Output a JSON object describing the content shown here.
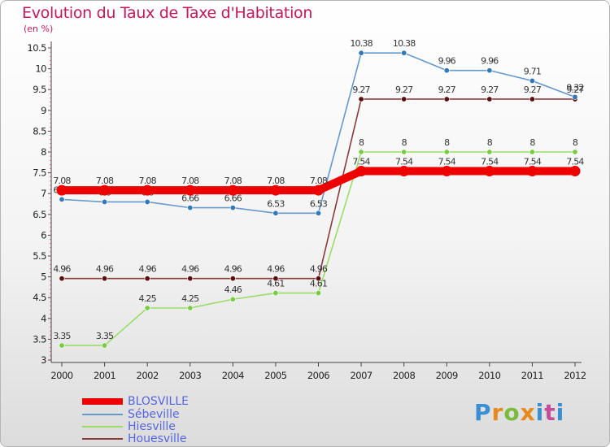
{
  "header": {
    "title": "Evolution du Taux de Taxe d'Habitation",
    "unit": "(en %)"
  },
  "logo": {
    "text": "Proxiti"
  },
  "chart_data": {
    "type": "line",
    "title": "Evolution du Taux de Taxe d'Habitation",
    "ylabel": "(en %)",
    "xlabel": "",
    "x": [
      "2000",
      "2001",
      "2002",
      "2003",
      "2004",
      "2005",
      "2006",
      "2007",
      "2008",
      "2009",
      "2010",
      "2011",
      "2012"
    ],
    "ylim": [
      3,
      10.5
    ],
    "yticks": [
      "3",
      "3.5",
      "4",
      "4.5",
      "5",
      "5.5",
      "6",
      "6.5",
      "7",
      "7.5",
      "8",
      "8.5",
      "9",
      "9.5",
      "10",
      "10.5"
    ],
    "grid": false,
    "legend_position": "bottom-left",
    "series": [
      {
        "name": "Hiesville",
        "color": "#99dd66",
        "marker_color": "#77cc44",
        "values": [
          3.35,
          3.35,
          4.25,
          4.25,
          4.46,
          4.61,
          4.61,
          8,
          8,
          8,
          8,
          8,
          8
        ],
        "labels": [
          "3.35",
          "3.35",
          "4.25",
          "4.25",
          "4.46",
          "4.61",
          "4.61",
          "8",
          "8",
          "8",
          "8",
          "8",
          "8"
        ]
      },
      {
        "name": "Houesville",
        "color": "#8b3a3a",
        "marker_color": "#5a1010",
        "values": [
          4.96,
          4.96,
          4.96,
          4.96,
          4.96,
          4.96,
          4.96,
          9.27,
          9.27,
          9.27,
          9.27,
          9.27,
          9.27
        ],
        "labels": [
          "4.96",
          "4.96",
          "4.96",
          "4.96",
          "4.96",
          "4.96",
          "4.96",
          "9.27",
          "9.27",
          "9.27",
          "9.27",
          "9.27",
          "9.27"
        ]
      },
      {
        "name": "Sébeville",
        "color": "#6699cc",
        "marker_color": "#3377bb",
        "values": [
          6.86,
          6.8,
          6.8,
          6.66,
          6.66,
          6.53,
          6.53,
          10.38,
          10.38,
          9.96,
          9.96,
          9.71,
          9.32
        ],
        "labels": [
          "6.86",
          "6.8",
          "6.8",
          "6.66",
          "6.66",
          "6.53",
          "6.53",
          "10.38",
          "10.38",
          "9.96",
          "9.96",
          "9.71",
          "9.32"
        ]
      },
      {
        "name": "BLOSVILLE",
        "color": "#ee0000",
        "marker_color": "#ee0000",
        "thick": true,
        "values": [
          7.08,
          7.08,
          7.08,
          7.08,
          7.08,
          7.08,
          7.08,
          7.54,
          7.54,
          7.54,
          7.54,
          7.54,
          7.54
        ],
        "labels": [
          "7.08",
          "7.08",
          "7.08",
          "7.08",
          "7.08",
          "7.08",
          "7.08",
          "7.54",
          "7.54",
          "7.54",
          "7.54",
          "7.54",
          "7.54"
        ]
      }
    ],
    "legend": [
      {
        "name": "BLOSVILLE",
        "color": "#ee0000",
        "thick": true
      },
      {
        "name": "Sébeville",
        "color": "#6699cc"
      },
      {
        "name": "Hiesville",
        "color": "#99dd66"
      },
      {
        "name": "Houesville",
        "color": "#8b3a3a"
      }
    ]
  }
}
